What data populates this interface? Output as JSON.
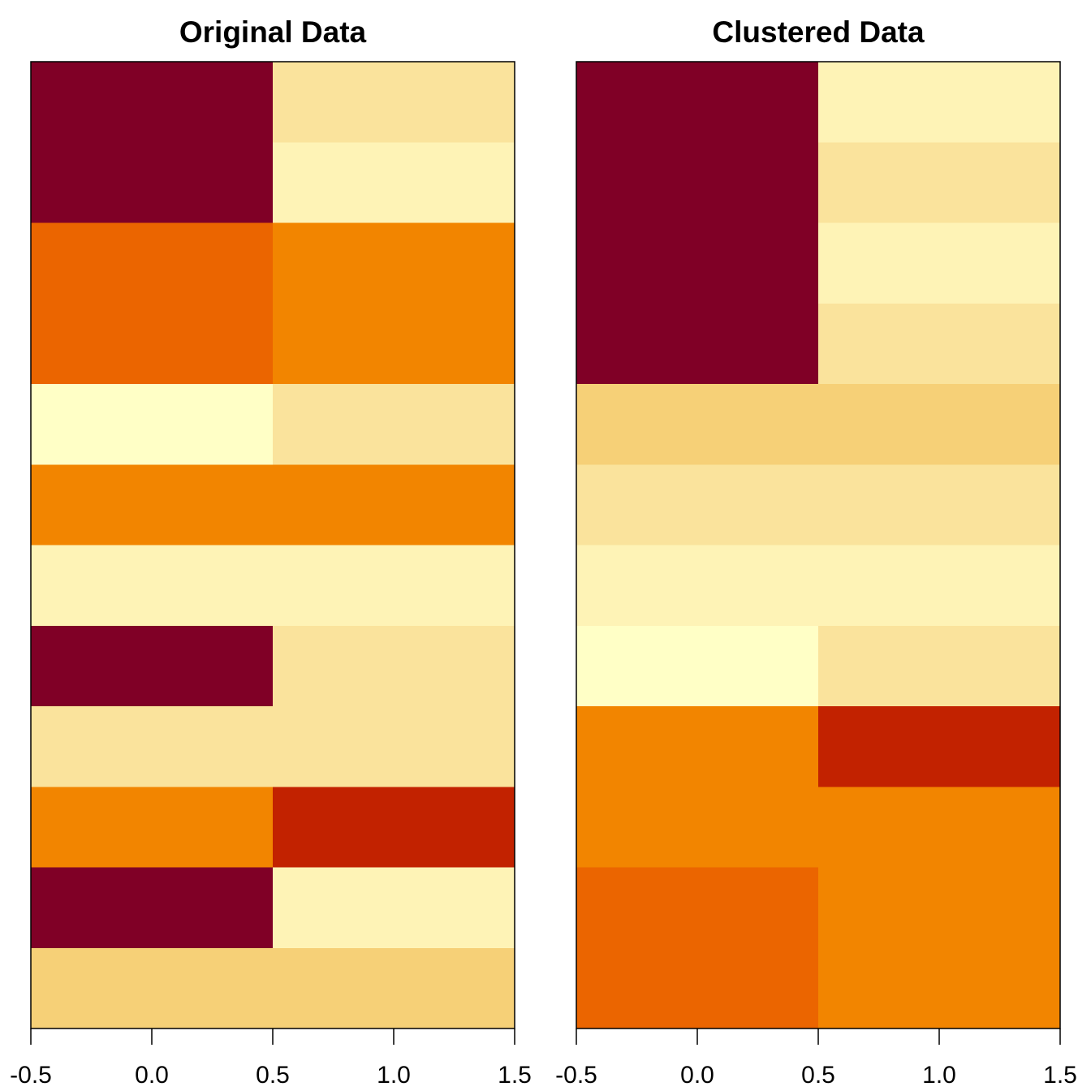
{
  "chart_data": [
    {
      "type": "heatmap",
      "title": "Original Data",
      "x": [
        0,
        1
      ],
      "xlim": [
        -0.5,
        1.5
      ],
      "xticks": [
        "-0.5",
        "0.0",
        "0.5",
        "1.0",
        "1.5"
      ],
      "rows_top_to_bottom": [
        [
          "#800026",
          "#FAE39C"
        ],
        [
          "#800026",
          "#FEF3B6"
        ],
        [
          "#EB6500",
          "#F28500"
        ],
        [
          "#EB6500",
          "#F28500"
        ],
        [
          "#FFFFC6",
          "#FAE39C"
        ],
        [
          "#F28500",
          "#F28500"
        ],
        [
          "#FEF3B6",
          "#FEF3B6"
        ],
        [
          "#800026",
          "#FAE39C"
        ],
        [
          "#FAE39C",
          "#FAE39C"
        ],
        [
          "#F28500",
          "#C22200"
        ],
        [
          "#800026",
          "#FEF3B6"
        ],
        [
          "#F6D077",
          "#F6D077"
        ]
      ]
    },
    {
      "type": "heatmap",
      "title": "Clustered Data",
      "x": [
        0,
        1
      ],
      "xlim": [
        -0.5,
        1.5
      ],
      "xticks": [
        "-0.5",
        "0.0",
        "0.5",
        "1.0",
        "1.5"
      ],
      "rows_top_to_bottom": [
        [
          "#800026",
          "#FEF3B6"
        ],
        [
          "#800026",
          "#FAE39C"
        ],
        [
          "#800026",
          "#FEF3B6"
        ],
        [
          "#800026",
          "#FAE39C"
        ],
        [
          "#F6D077",
          "#F6D077"
        ],
        [
          "#FAE39C",
          "#FAE39C"
        ],
        [
          "#FEF3B6",
          "#FEF3B6"
        ],
        [
          "#FFFFC6",
          "#FAE39C"
        ],
        [
          "#F28500",
          "#C22200"
        ],
        [
          "#F28500",
          "#F28500"
        ],
        [
          "#EB6500",
          "#F28500"
        ],
        [
          "#EB6500",
          "#F28500"
        ]
      ]
    }
  ]
}
